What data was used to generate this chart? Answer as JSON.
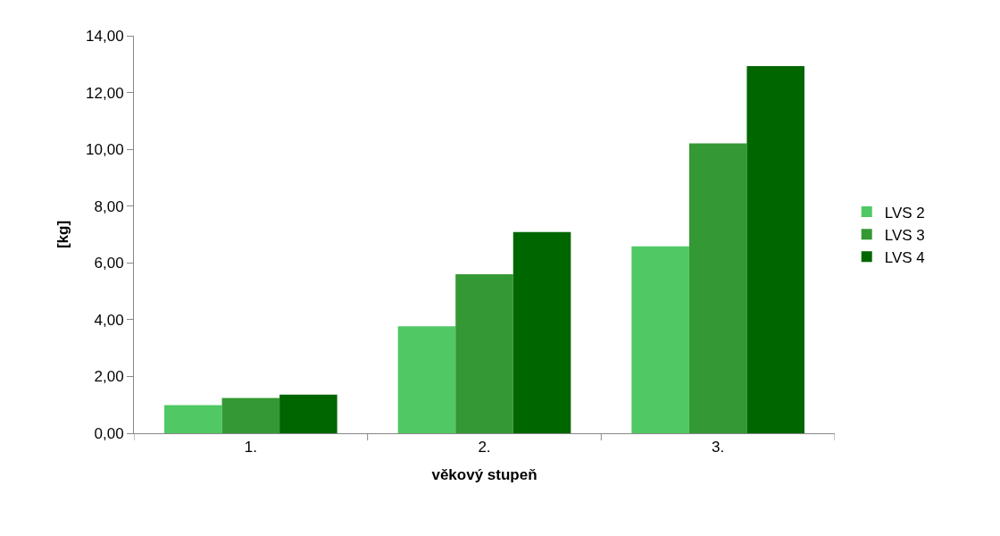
{
  "chart_data": {
    "type": "bar",
    "xlabel": "věkový stupeň",
    "ylabel": "[kg]",
    "categories": [
      "1.",
      "2.",
      "3."
    ],
    "series": [
      {
        "name": "LVS 2",
        "color": "#50c864",
        "values": [
          0.99,
          3.77,
          6.58
        ]
      },
      {
        "name": "LVS 3",
        "color": "#349934",
        "values": [
          1.24,
          5.6,
          10.21
        ]
      },
      {
        "name": "LVS 4",
        "color": "#006600",
        "values": [
          1.36,
          7.09,
          12.93
        ]
      }
    ],
    "ylim": [
      0,
      14
    ],
    "yticks": [
      {
        "value": 0,
        "label": "0,00"
      },
      {
        "value": 2,
        "label": "2,00"
      },
      {
        "value": 4,
        "label": "4,00"
      },
      {
        "value": 6,
        "label": "6,00"
      },
      {
        "value": 8,
        "label": "8,00"
      },
      {
        "value": 10,
        "label": "10,00"
      },
      {
        "value": 12,
        "label": "12,00"
      },
      {
        "value": 14,
        "label": "14,00"
      }
    ],
    "legend": "right"
  }
}
